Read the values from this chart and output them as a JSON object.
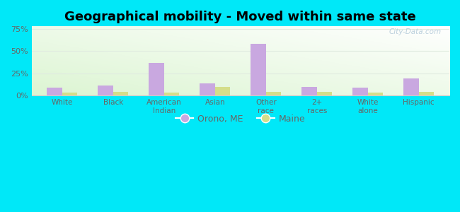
{
  "title": "Geographical mobility - Moved within same state",
  "categories": [
    "White",
    "Black",
    "American\nIndian",
    "Asian",
    "Other\nrace",
    "2+\nraces",
    "White\nalone",
    "Hispanic"
  ],
  "orono_values": [
    9,
    11,
    37,
    14,
    58,
    10,
    9,
    19
  ],
  "maine_values": [
    3,
    4,
    3,
    10,
    4,
    4,
    3,
    4
  ],
  "orono_color": "#c9a8e0",
  "maine_color": "#d4de8a",
  "yticks": [
    0,
    25,
    50,
    75
  ],
  "ylim": [
    0,
    78
  ],
  "bar_width": 0.3,
  "legend_orono": "Orono, ME",
  "legend_maine": "Maine",
  "outer_bg": "#00e8f8",
  "title_fontsize": 13,
  "tick_color": "#666666",
  "watermark": "City-Data.com",
  "bg_colors": [
    "#e8f5e2",
    "#f8fef4",
    "#ffffff"
  ],
  "gridline_color": "#e0ebe0"
}
